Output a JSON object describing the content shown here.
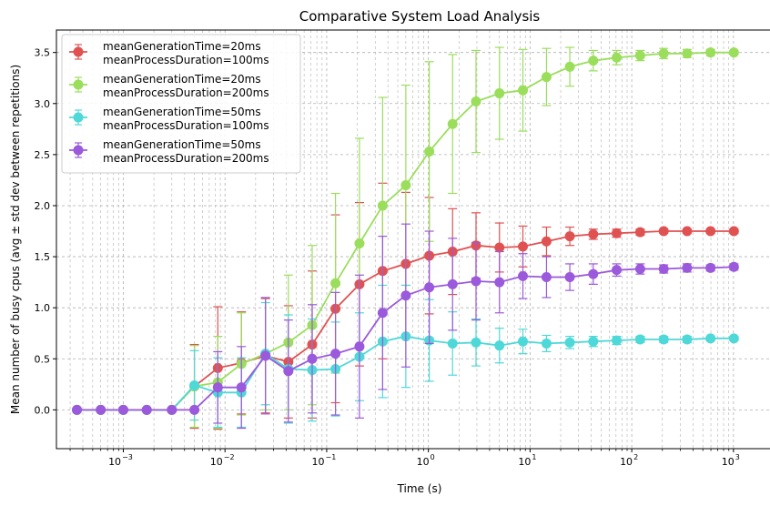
{
  "chart_data": {
    "type": "line",
    "title": "Comparative System Load Analysis",
    "xlabel": "Time (s)",
    "ylabel": "Mean number of busy cpus (avg ± std dev between repetitions)",
    "xscale": "log",
    "xlim": [
      0.00022,
      1900
    ],
    "ylim": [
      -0.38,
      3.72
    ],
    "grid": true,
    "legend_position": "top-left",
    "x_ticks": [
      {
        "value": 0.001,
        "base": "10",
        "exp": "−3"
      },
      {
        "value": 0.01,
        "base": "10",
        "exp": "−2"
      },
      {
        "value": 0.1,
        "base": "10",
        "exp": "−1"
      },
      {
        "value": 1,
        "base": "10",
        "exp": "0"
      },
      {
        "value": 10,
        "base": "10",
        "exp": "1"
      },
      {
        "value": 100,
        "base": "10",
        "exp": "2"
      },
      {
        "value": 1000,
        "base": "10",
        "exp": "3"
      }
    ],
    "y_ticks": [
      "0.0",
      "0.5",
      "1.0",
      "1.5",
      "2.0",
      "2.5",
      "3.0",
      "3.5"
    ],
    "x": [
      0.00035,
      0.0006,
      0.001,
      0.0017,
      0.003,
      0.005,
      0.0085,
      0.0145,
      0.025,
      0.042,
      0.072,
      0.122,
      0.21,
      0.355,
      0.6,
      1.02,
      1.73,
      2.94,
      5.0,
      8.5,
      14.5,
      24.6,
      41.8,
      71,
      121,
      206,
      350,
      595,
      1010
    ],
    "series": [
      {
        "name": "meanGenerationTime=20ms\nmeanProcessDuration=100ms",
        "legend_lines": [
          "meanGenerationTime=20ms",
          "meanProcessDuration=100ms"
        ],
        "color": "#e05252",
        "values": [
          0,
          0,
          0,
          0,
          0,
          0.23,
          0.41,
          0.46,
          0.53,
          0.47,
          0.64,
          0.99,
          1.23,
          1.36,
          1.43,
          1.51,
          1.55,
          1.61,
          1.59,
          1.6,
          1.65,
          1.7,
          1.72,
          1.73,
          1.74,
          1.75,
          1.75,
          1.75,
          1.75
        ],
        "errors": [
          0,
          0,
          0,
          0,
          0,
          0.41,
          0.6,
          0.5,
          0.56,
          0.55,
          0.72,
          0.92,
          0.8,
          0.86,
          0.7,
          0.57,
          0.42,
          0.32,
          0.24,
          0.2,
          0.14,
          0.09,
          0.05,
          0.04,
          0.03,
          0.02,
          0.02,
          0.02,
          0.02
        ]
      },
      {
        "name": "meanGenerationTime=20ms\nmeanProcessDuration=200ms",
        "legend_lines": [
          "meanGenerationTime=20ms",
          "meanProcessDuration=200ms"
        ],
        "color": "#9ade5c",
        "values": [
          0,
          0,
          0,
          0,
          0,
          0.23,
          0.27,
          0.45,
          0.55,
          0.66,
          0.83,
          1.24,
          1.63,
          2.0,
          2.2,
          2.53,
          2.8,
          3.02,
          3.1,
          3.13,
          3.26,
          3.36,
          3.42,
          3.45,
          3.47,
          3.49,
          3.49,
          3.5,
          3.5
        ],
        "errors": [
          0,
          0,
          0,
          0,
          0,
          0.4,
          0.45,
          0.5,
          0.55,
          0.66,
          0.78,
          0.88,
          1.03,
          1.06,
          0.98,
          0.88,
          0.68,
          0.5,
          0.45,
          0.4,
          0.28,
          0.19,
          0.1,
          0.07,
          0.05,
          0.05,
          0.04,
          0.03,
          0.02
        ]
      },
      {
        "name": "meanGenerationTime=50ms\nmeanProcessDuration=100ms",
        "legend_lines": [
          "meanGenerationTime=50ms",
          "meanProcessDuration=100ms"
        ],
        "color": "#4fd8d8",
        "values": [
          0,
          0,
          0,
          0,
          0,
          0.24,
          0.17,
          0.17,
          0.55,
          0.4,
          0.39,
          0.4,
          0.52,
          0.67,
          0.72,
          0.68,
          0.65,
          0.66,
          0.63,
          0.67,
          0.65,
          0.66,
          0.67,
          0.68,
          0.69,
          0.69,
          0.69,
          0.7,
          0.7
        ],
        "errors": [
          0,
          0,
          0,
          0,
          0,
          0.34,
          0.34,
          0.34,
          0.5,
          0.53,
          0.5,
          0.46,
          0.43,
          0.55,
          0.5,
          0.4,
          0.31,
          0.23,
          0.17,
          0.12,
          0.08,
          0.06,
          0.05,
          0.04,
          0.03,
          0.03,
          0.03,
          0.02,
          0.02
        ]
      },
      {
        "name": "meanGenerationTime=50ms\nmeanProcessDuration=200ms",
        "legend_lines": [
          "meanGenerationTime=50ms",
          "meanProcessDuration=200ms"
        ],
        "color": "#9b59db",
        "values": [
          0,
          0,
          0,
          0,
          0,
          0,
          0.22,
          0.22,
          0.53,
          0.38,
          0.5,
          0.55,
          0.62,
          0.95,
          1.12,
          1.2,
          1.23,
          1.26,
          1.25,
          1.31,
          1.3,
          1.3,
          1.33,
          1.37,
          1.38,
          1.38,
          1.39,
          1.39,
          1.4
        ],
        "errors": [
          0,
          0,
          0,
          0,
          0,
          0,
          0.35,
          0.4,
          0.57,
          0.5,
          0.53,
          0.6,
          0.7,
          0.75,
          0.7,
          0.55,
          0.45,
          0.38,
          0.3,
          0.22,
          0.2,
          0.13,
          0.1,
          0.06,
          0.05,
          0.04,
          0.04,
          0.03,
          0.03
        ]
      }
    ]
  }
}
